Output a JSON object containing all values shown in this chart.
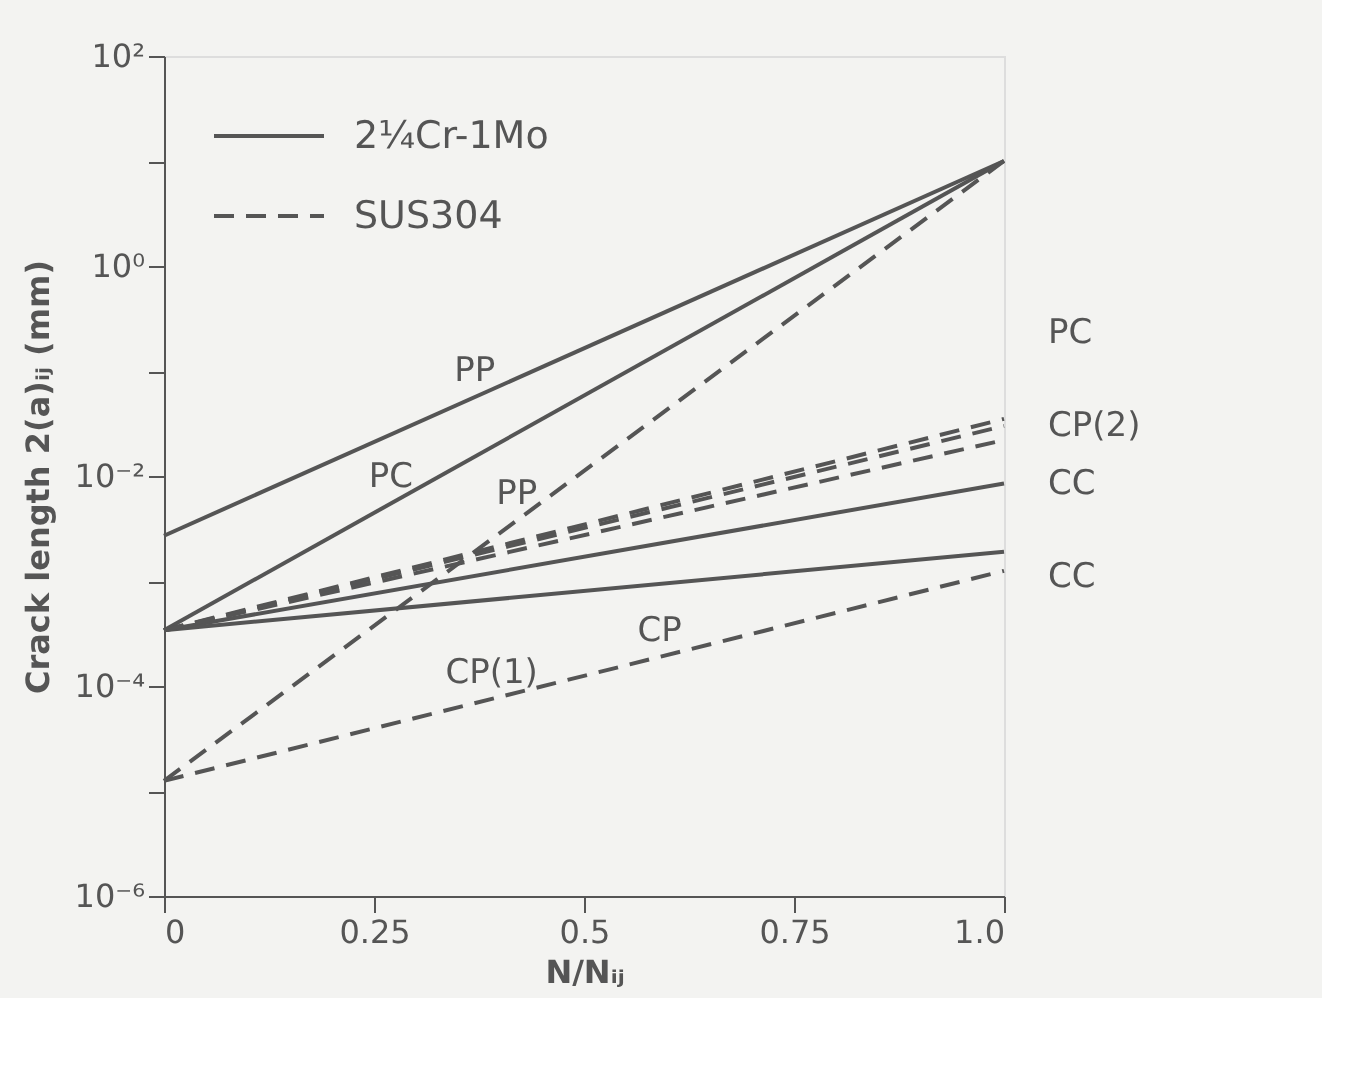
{
  "chart_data": {
    "type": "line",
    "xlabel": "N/Nᵢⱼ",
    "ylabel": "Crack length 2(a)ᵢⱼ (mm)",
    "log": "y",
    "xlim": [
      0,
      1
    ],
    "xticks": [
      0,
      0.25,
      0.5,
      0.75,
      {
        "value": 1,
        "label": "1.0"
      }
    ],
    "ylim": [
      1e-06,
      100
    ],
    "yticks": [
      {
        "value": 1e-06,
        "label": "10⁻⁶"
      },
      {
        "value": 1e-05,
        "label": null
      },
      {
        "value": 0.0001,
        "label": "10⁻⁴"
      },
      {
        "value": 0.001,
        "label": null
      },
      {
        "value": 0.01,
        "label": "10⁻²"
      },
      {
        "value": 0.1,
        "label": null
      },
      {
        "value": 1,
        "label": "10⁰"
      },
      {
        "value": 10,
        "label": null
      },
      {
        "value": 100,
        "label": "10²"
      }
    ],
    "grid": false,
    "legend": "top left",
    "x": [
      0,
      1
    ],
    "series": [
      {
        "name": "2¼Cr-1Mo",
        "color": "#555555",
        "line_style": "solid",
        "values": [
          0.0027,
          10
        ]
      },
      {
        "color": "#555555",
        "line_style": "solid",
        "values": [
          0.00034,
          10
        ]
      },
      {
        "color": "#555555",
        "line_style": "solid",
        "values": [
          0.00034,
          0.0085
        ]
      },
      {
        "color": "#555555",
        "line_style": "solid",
        "values": [
          0.00034,
          0.0019
        ]
      },
      {
        "name": "SUS304",
        "color": "#555555",
        "line_style": "dashed",
        "values": [
          1.25e-05,
          10
        ]
      },
      {
        "color": "#555555",
        "line_style": "dashed",
        "values": [
          0.00034,
          0.035
        ]
      },
      {
        "color": "#555555",
        "line_style": "dashed",
        "values": [
          0.00034,
          0.03
        ]
      },
      {
        "color": "#555555",
        "line_style": "dashed",
        "values": [
          0.00034,
          0.022
        ]
      },
      {
        "color": "#555555",
        "line_style": "dashed",
        "values": [
          1.25e-05,
          0.00125
        ]
      }
    ],
    "annotations": [
      {
        "text": "PP",
        "x": 0.37,
        "y": 0.056
      },
      {
        "text": "PC",
        "x": 0.27,
        "y": 0.0055
      },
      {
        "text": "PP",
        "x": 0.42,
        "y": 0.0038
      },
      {
        "text": "CP(1)",
        "x": 0.39,
        "y": 7.5e-05
      },
      {
        "text": "CP",
        "x": 0.59,
        "y": 0.00019
      },
      "PC",
      "CP(2)",
      "CC",
      "CC"
    ]
  }
}
